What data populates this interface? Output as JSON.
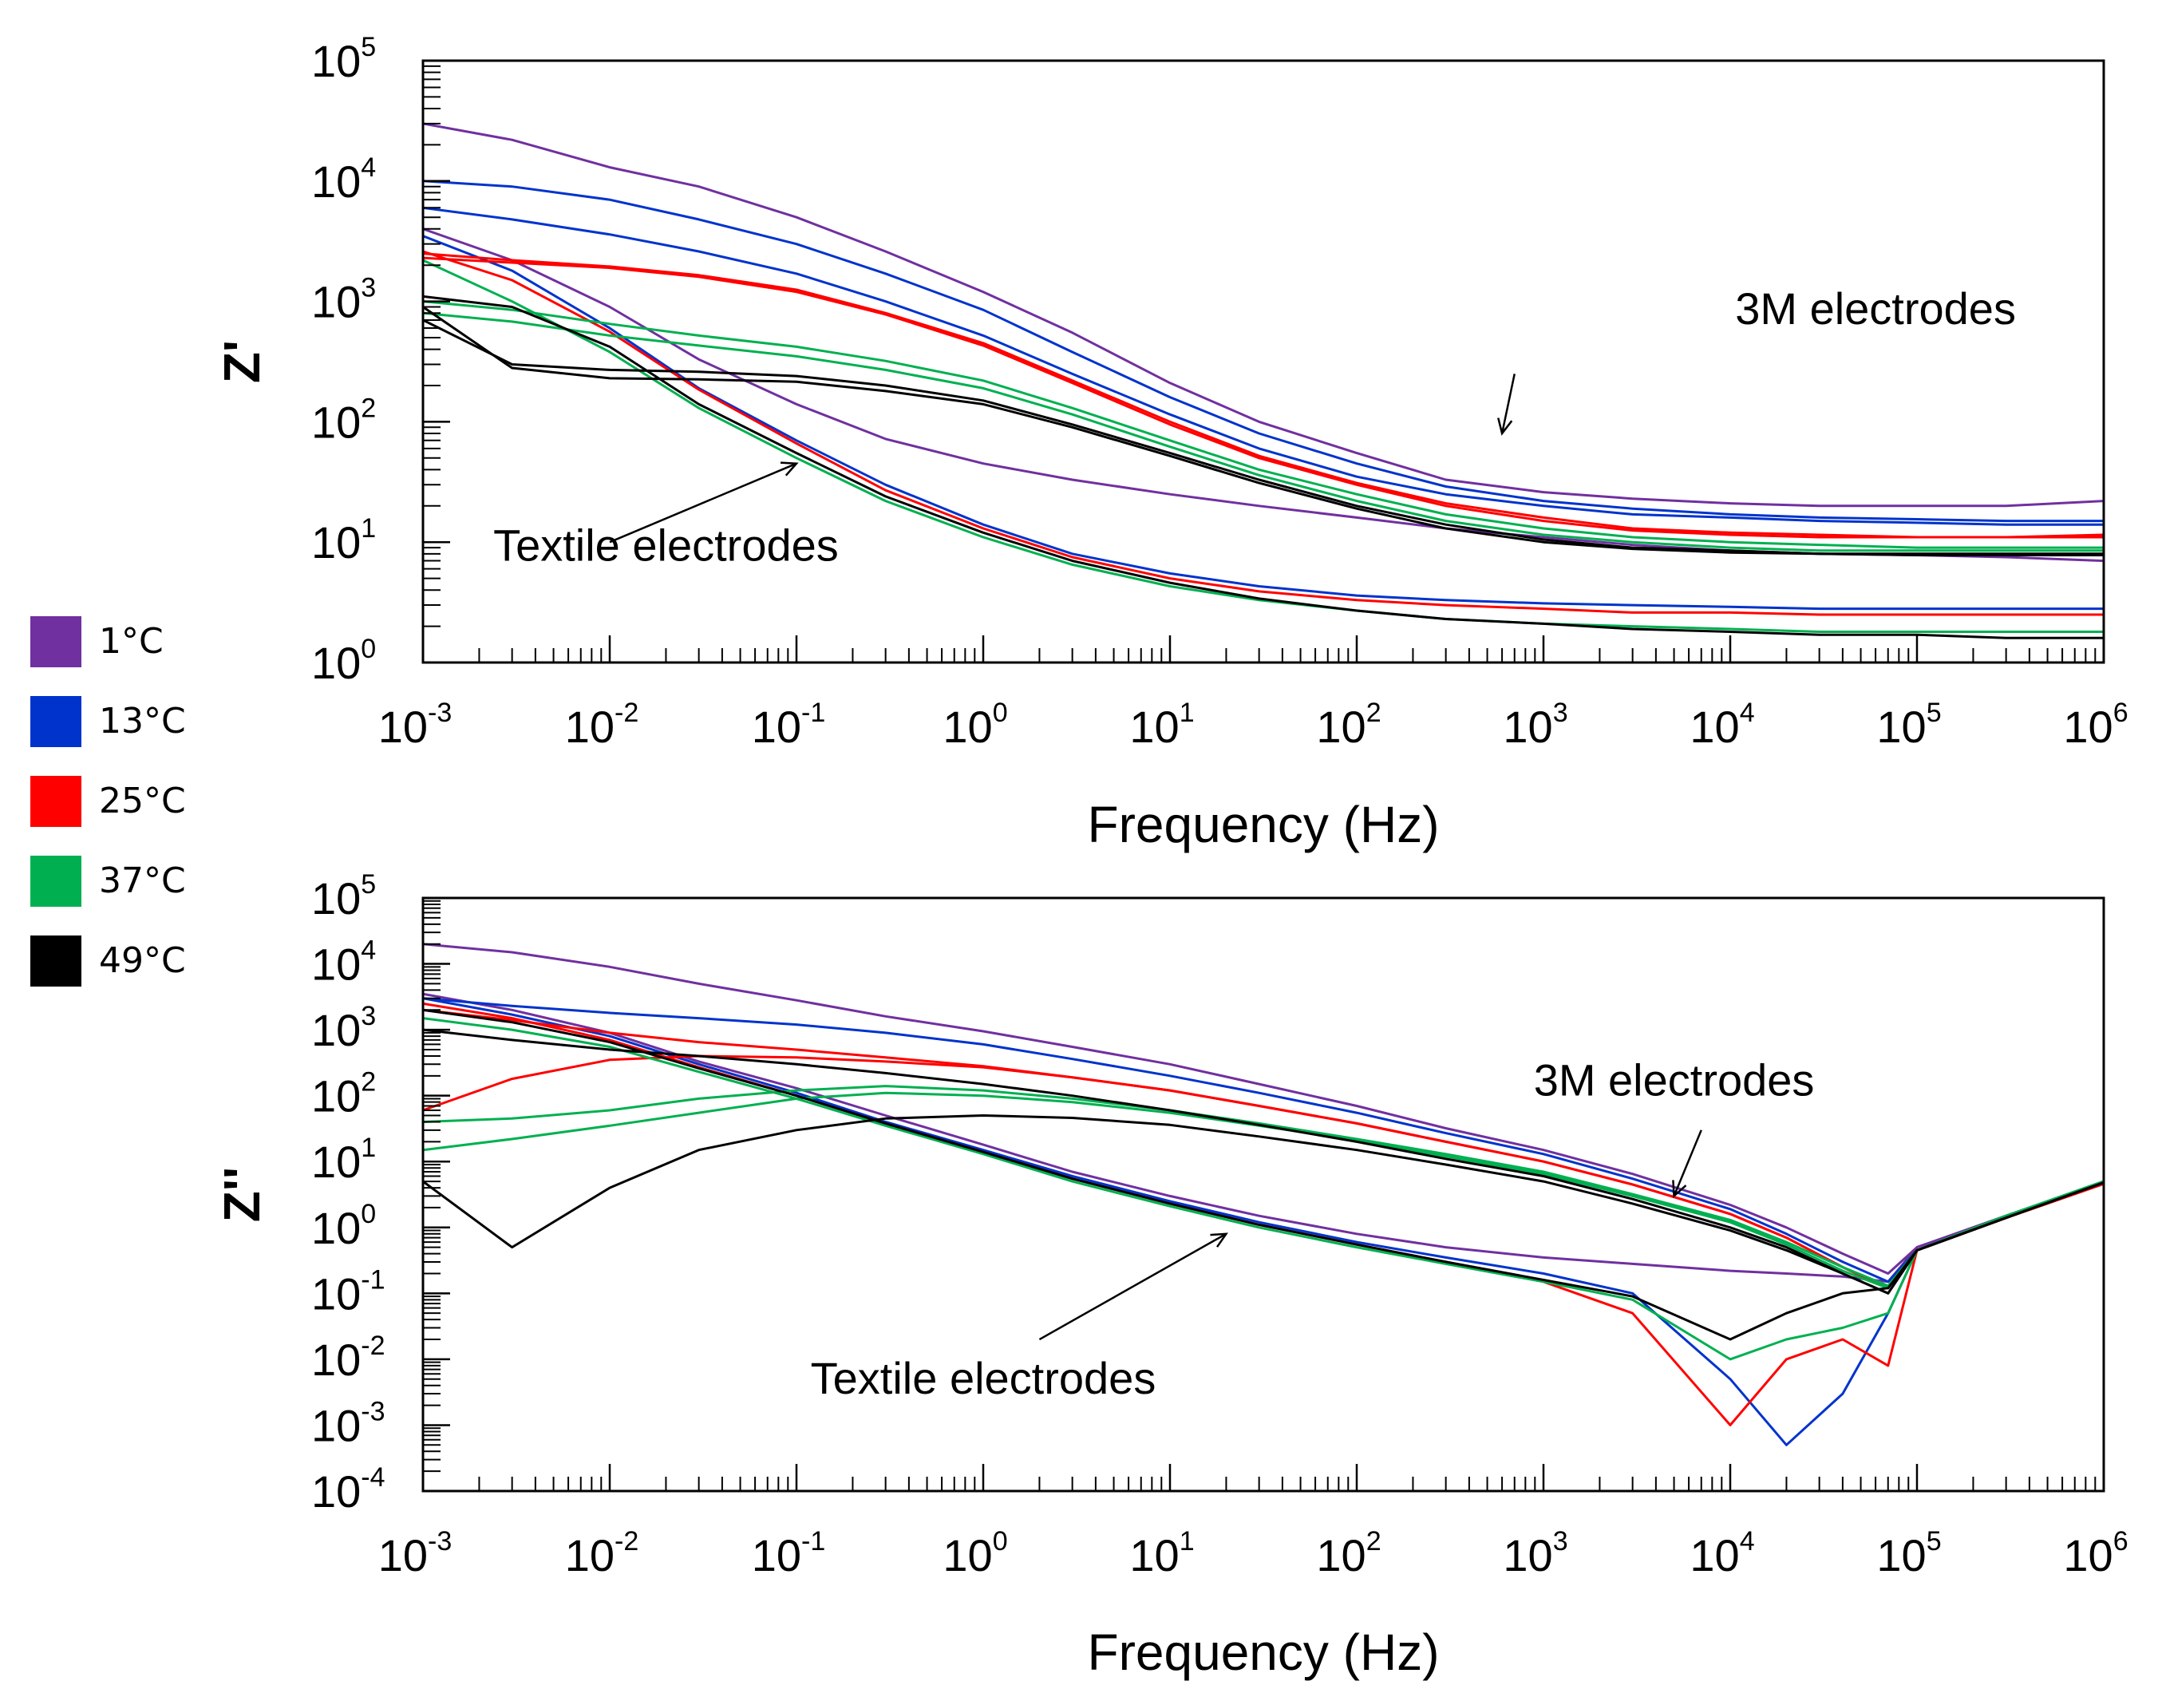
{
  "legend": {
    "items": [
      {
        "label": "1°C",
        "color": "#7030a0"
      },
      {
        "label": "13°C",
        "color": "#0033cc"
      },
      {
        "label": "25°C",
        "color": "#ff0000"
      },
      {
        "label": "37°C",
        "color": "#00b050"
      },
      {
        "label": "49°C",
        "color": "#000000"
      }
    ]
  },
  "chart_data": [
    {
      "type": "line",
      "xlabel": "Frequency (Hz)",
      "ylabel": "Z'",
      "x_scale": "log",
      "y_scale": "log",
      "xlim": [
        0.001,
        1000000
      ],
      "ylim": [
        1,
        100000
      ],
      "x_ticks": [
        {
          "base": "10",
          "exp": "-3"
        },
        {
          "base": "10",
          "exp": "-2"
        },
        {
          "base": "10",
          "exp": "-1"
        },
        {
          "base": "10",
          "exp": "0"
        },
        {
          "base": "10",
          "exp": "1"
        },
        {
          "base": "10",
          "exp": "2"
        },
        {
          "base": "10",
          "exp": "3"
        },
        {
          "base": "10",
          "exp": "4"
        },
        {
          "base": "10",
          "exp": "5"
        },
        {
          "base": "10",
          "exp": "6"
        }
      ],
      "y_ticks": [
        {
          "base": "10",
          "exp": "0"
        },
        {
          "base": "10",
          "exp": "1"
        },
        {
          "base": "10",
          "exp": "2"
        },
        {
          "base": "10",
          "exp": "3"
        },
        {
          "base": "10",
          "exp": "4"
        },
        {
          "base": "10",
          "exp": "5"
        }
      ],
      "annotations": [
        {
          "text": "3M electrodes",
          "x": 60000,
          "y": 650,
          "arrow_from": [
            700,
            250
          ],
          "arrow_to": [
            600,
            80
          ]
        },
        {
          "text": "Textile electrodes",
          "x": 0.02,
          "y": 7,
          "arrow_from": [
            0.01,
            10
          ],
          "arrow_to": [
            0.1,
            45
          ]
        }
      ],
      "x": [
        0.001,
        0.003,
        0.01,
        0.03,
        0.1,
        0.3,
        1,
        3,
        10,
        30,
        100,
        300,
        1000,
        3000,
        10000,
        30000,
        100000,
        300000,
        1000000
      ],
      "series": [
        {
          "color": "#7030a0",
          "group": "3M",
          "values": [
            30000,
            22000,
            13000,
            9000,
            5000,
            2600,
            1200,
            550,
            210,
            100,
            55,
            33,
            26,
            23,
            21,
            20,
            20,
            20,
            22
          ]
        },
        {
          "color": "#7030a0",
          "group": "Textile",
          "values": [
            4000,
            2200,
            900,
            330,
            140,
            72,
            45,
            33,
            25,
            20,
            16,
            13,
            11,
            9.5,
            8.5,
            8,
            7.8,
            7.5,
            7
          ]
        },
        {
          "color": "#0033cc",
          "group": "3M",
          "values": [
            10000,
            9000,
            7000,
            4800,
            3000,
            1700,
            850,
            380,
            160,
            80,
            45,
            29,
            22,
            19,
            17,
            16,
            15.5,
            15,
            15
          ]
        },
        {
          "color": "#0033cc",
          "group": "3M",
          "values": [
            6000,
            4800,
            3600,
            2600,
            1700,
            1000,
            520,
            250,
            115,
            60,
            35,
            25,
            20,
            17,
            16,
            15,
            14.5,
            14,
            14
          ]
        },
        {
          "color": "#0033cc",
          "group": "Textile",
          "values": [
            3500,
            1800,
            600,
            190,
            70,
            30,
            14,
            8,
            5.5,
            4.3,
            3.6,
            3.3,
            3.1,
            3,
            2.9,
            2.8,
            2.8,
            2.8,
            2.8
          ]
        },
        {
          "color": "#ff0000",
          "group": "3M",
          "values": [
            2300,
            2100,
            1900,
            1600,
            1200,
            780,
            430,
            210,
            95,
            50,
            30,
            20,
            15,
            12.5,
            11.5,
            11,
            11,
            11,
            11
          ]
        },
        {
          "color": "#ff0000",
          "group": "3M",
          "values": [
            2500,
            2200,
            1950,
            1650,
            1250,
            800,
            450,
            220,
            100,
            52,
            31,
            21,
            16,
            13,
            12,
            11.5,
            11,
            11,
            11.5
          ]
        },
        {
          "color": "#ff0000",
          "group": "Textile",
          "values": [
            2600,
            1500,
            560,
            185,
            66,
            27,
            13,
            7.5,
            5,
            3.9,
            3.3,
            3,
            2.8,
            2.6,
            2.6,
            2.5,
            2.5,
            2.5,
            2.5
          ]
        },
        {
          "color": "#00b050",
          "group": "3M",
          "values": [
            1000,
            850,
            650,
            520,
            420,
            320,
            220,
            130,
            70,
            40,
            25,
            17,
            13,
            11,
            10,
            9.5,
            9,
            9,
            9
          ]
        },
        {
          "color": "#00b050",
          "group": "3M",
          "values": [
            800,
            680,
            520,
            430,
            350,
            270,
            190,
            115,
            62,
            36,
            22,
            15,
            11.5,
            10,
            9,
            8.5,
            8.5,
            8.5,
            8.5
          ]
        },
        {
          "color": "#00b050",
          "group": "Textile",
          "values": [
            2200,
            1000,
            380,
            130,
            50,
            22,
            11,
            6.5,
            4.3,
            3.3,
            2.7,
            2.3,
            2.1,
            2,
            1.9,
            1.8,
            1.8,
            1.8,
            1.8
          ]
        },
        {
          "color": "#000000",
          "group": "3M",
          "values": [
            700,
            300,
            270,
            260,
            240,
            200,
            150,
            95,
            55,
            33,
            20,
            14,
            10.5,
            9,
            8.5,
            8,
            8,
            8,
            8
          ]
        },
        {
          "color": "#000000",
          "group": "3M",
          "values": [
            900,
            280,
            230,
            225,
            215,
            180,
            140,
            90,
            52,
            31,
            19,
            13,
            10,
            8.8,
            8.2,
            8,
            7.8,
            7.8,
            7.8
          ]
        },
        {
          "color": "#000000",
          "group": "Textile",
          "values": [
            1100,
            900,
            420,
            140,
            55,
            24,
            12,
            7,
            4.6,
            3.4,
            2.7,
            2.3,
            2.1,
            1.9,
            1.8,
            1.7,
            1.7,
            1.6,
            1.6
          ]
        }
      ]
    },
    {
      "type": "line",
      "xlabel": "Frequency (Hz)",
      "ylabel": "Z''",
      "x_scale": "log",
      "y_scale": "log",
      "xlim": [
        0.001,
        1000000
      ],
      "ylim": [
        0.0001,
        100000
      ],
      "x_ticks": [
        {
          "base": "10",
          "exp": "-3"
        },
        {
          "base": "10",
          "exp": "-2"
        },
        {
          "base": "10",
          "exp": "-1"
        },
        {
          "base": "10",
          "exp": "0"
        },
        {
          "base": "10",
          "exp": "1"
        },
        {
          "base": "10",
          "exp": "2"
        },
        {
          "base": "10",
          "exp": "3"
        },
        {
          "base": "10",
          "exp": "4"
        },
        {
          "base": "10",
          "exp": "5"
        },
        {
          "base": "10",
          "exp": "6"
        }
      ],
      "y_ticks": [
        {
          "base": "10",
          "exp": "-4"
        },
        {
          "base": "10",
          "exp": "-3"
        },
        {
          "base": "10",
          "exp": "-2"
        },
        {
          "base": "10",
          "exp": "-1"
        },
        {
          "base": "10",
          "exp": "0"
        },
        {
          "base": "10",
          "exp": "1"
        },
        {
          "base": "10",
          "exp": "2"
        },
        {
          "base": "10",
          "exp": "3"
        },
        {
          "base": "10",
          "exp": "4"
        },
        {
          "base": "10",
          "exp": "5"
        }
      ],
      "annotations": [
        {
          "text": "3M electrodes",
          "x": 5000,
          "y": 100,
          "arrow_from": [
            7000,
            30
          ],
          "arrow_to": [
            5000,
            3
          ]
        },
        {
          "text": "Textile electrodes",
          "x": 1,
          "y": 0.003,
          "arrow_from": [
            2,
            0.02
          ],
          "arrow_to": [
            20,
            0.8
          ]
        }
      ],
      "x": [
        0.001,
        0.003,
        0.01,
        0.03,
        0.1,
        0.3,
        1,
        3,
        10,
        30,
        100,
        300,
        1000,
        3000,
        10000,
        20000,
        40000,
        70000,
        100000,
        300000,
        1000000
      ],
      "series": [
        {
          "color": "#7030a0",
          "group": "3M",
          "values": [
            20000,
            15000,
            9000,
            5000,
            2800,
            1600,
            950,
            550,
            300,
            150,
            70,
            32,
            15,
            6.5,
            2.2,
            1,
            0.4,
            0.2,
            0.5,
            1.5,
            5
          ]
        },
        {
          "color": "#7030a0",
          "group": "Textile",
          "values": [
            3500,
            2000,
            900,
            330,
            130,
            50,
            18,
            7,
            3,
            1.5,
            0.8,
            0.5,
            0.35,
            0.28,
            0.22,
            0.2,
            0.18,
            0.15,
            0.5,
            1.5,
            5
          ]
        },
        {
          "color": "#0033cc",
          "group": "3M",
          "values": [
            3000,
            2300,
            1800,
            1500,
            1200,
            900,
            600,
            360,
            200,
            110,
            55,
            27,
            13,
            5.5,
            1.9,
            0.8,
            0.3,
            0.15,
            0.45,
            1.4,
            4.8
          ]
        },
        {
          "color": "#0033cc",
          "group": "Textile",
          "values": [
            3000,
            1700,
            800,
            300,
            110,
            40,
            15,
            6,
            2.5,
            1.2,
            0.6,
            0.35,
            0.2,
            0.1,
            0.005,
            0.0005,
            0.003,
            0.05,
            0.45,
            1.4,
            4.8
          ]
        },
        {
          "color": "#ff0000",
          "group": "3M",
          "values": [
            60,
            180,
            350,
            400,
            380,
            330,
            270,
            190,
            120,
            70,
            38,
            20,
            10,
            4.5,
            1.6,
            0.7,
            0.25,
            0.12,
            0.45,
            1.4,
            4.6
          ]
        },
        {
          "color": "#ff0000",
          "group": "3M",
          "values": [
            2000,
            1400,
            900,
            650,
            500,
            380,
            280,
            190,
            120,
            70,
            38,
            20,
            10,
            4.5,
            1.6,
            0.7,
            0.25,
            0.12,
            0.45,
            1.4,
            4.6
          ]
        },
        {
          "color": "#ff0000",
          "group": "Textile",
          "values": [
            2500,
            1500,
            700,
            270,
            100,
            38,
            14,
            5.5,
            2.3,
            1.1,
            0.55,
            0.3,
            0.15,
            0.05,
            0.001,
            0.01,
            0.02,
            0.008,
            0.45,
            1.4,
            4.6
          ]
        },
        {
          "color": "#00b050",
          "group": "3M",
          "values": [
            15,
            22,
            35,
            55,
            90,
            110,
            100,
            80,
            55,
            35,
            21,
            12,
            6.5,
            3,
            1.2,
            0.55,
            0.22,
            0.12,
            0.45,
            1.5,
            5
          ]
        },
        {
          "color": "#00b050",
          "group": "3M",
          "values": [
            40,
            45,
            60,
            90,
            120,
            140,
            120,
            90,
            60,
            38,
            22,
            13,
            7,
            3.2,
            1.3,
            0.6,
            0.25,
            0.13,
            0.45,
            1.5,
            5
          ]
        },
        {
          "color": "#00b050",
          "group": "Textile",
          "values": [
            1500,
            1000,
            550,
            230,
            90,
            35,
            13,
            5,
            2.1,
            1,
            0.5,
            0.28,
            0.15,
            0.08,
            0.01,
            0.02,
            0.03,
            0.05,
            0.45,
            1.5,
            5
          ]
        },
        {
          "color": "#000000",
          "group": "3M",
          "values": [
            5,
            0.5,
            4,
            15,
            30,
            45,
            50,
            46,
            36,
            24,
            15,
            9,
            5,
            2.3,
            0.9,
            0.45,
            0.2,
            0.1,
            0.45,
            1.4,
            4.8
          ]
        },
        {
          "color": "#000000",
          "group": "3M",
          "values": [
            1000,
            700,
            500,
            400,
            300,
            220,
            150,
            100,
            60,
            36,
            20,
            11,
            6,
            2.7,
            1,
            0.5,
            0.2,
            0.1,
            0.45,
            1.4,
            4.8
          ]
        },
        {
          "color": "#000000",
          "group": "Textile",
          "values": [
            2000,
            1300,
            650,
            260,
            100,
            38,
            14,
            5.5,
            2.3,
            1.1,
            0.55,
            0.3,
            0.16,
            0.09,
            0.02,
            0.05,
            0.1,
            0.12,
            0.45,
            1.4,
            4.8
          ]
        }
      ]
    }
  ]
}
